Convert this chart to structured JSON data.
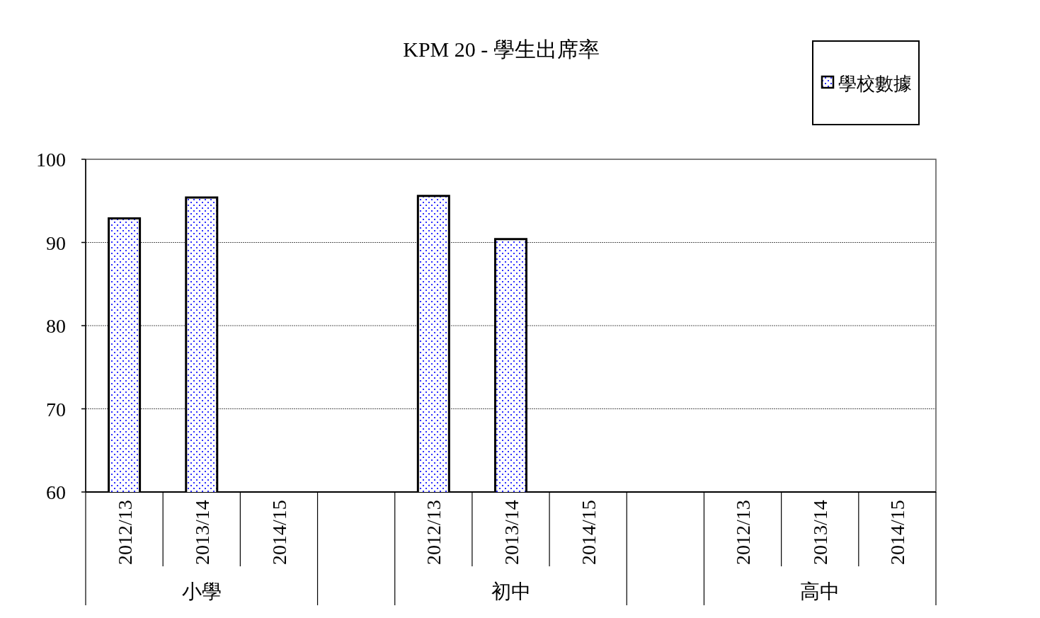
{
  "chart_data": {
    "type": "bar",
    "title": "KPM 20 - 學生出席率",
    "categories": [
      "2012/13",
      "2013/14",
      "2014/15",
      null,
      "2012/13",
      "2013/14",
      "2014/15",
      null,
      "2012/13",
      "2013/14",
      "2014/15"
    ],
    "series": [
      {
        "name": "學校數據",
        "color": "#0000ff",
        "values": [
          92.9,
          95.4,
          null,
          null,
          95.6,
          90.4,
          null,
          null,
          null,
          null,
          null
        ]
      }
    ],
    "annotations": [
      "小學",
      "初中",
      "高中"
    ],
    "ylim": [
      60,
      100
    ],
    "yticks": [
      60,
      70,
      80,
      90,
      100
    ],
    "grid": "y",
    "legend": "top right"
  }
}
